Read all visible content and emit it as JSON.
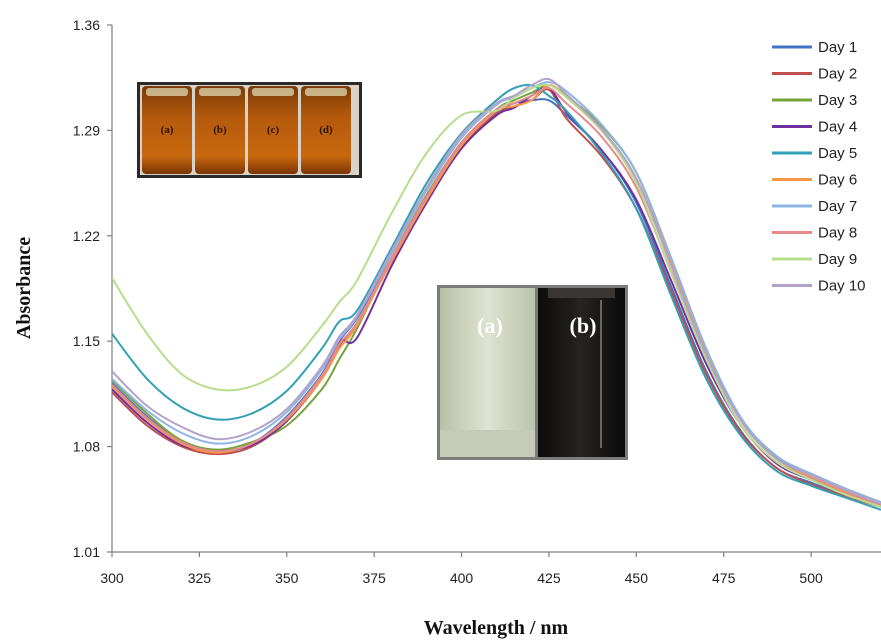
{
  "chart_data": {
    "type": "line",
    "title": "",
    "xlabel": "Wavelength / nm",
    "ylabel": "Absorbance",
    "xlim": [
      300,
      520
    ],
    "ylim": [
      1.01,
      1.36
    ],
    "xticks": [
      "300",
      "325",
      "350",
      "375",
      "400",
      "425",
      "450",
      "475",
      "500"
    ],
    "yticks": [
      "1.01",
      "1.08",
      "1.15",
      "1.22",
      "1.29",
      "1.36"
    ],
    "grid": false,
    "legend_position": "right",
    "x": [
      300,
      310,
      320,
      330,
      340,
      350,
      360,
      365,
      370,
      380,
      390,
      400,
      410,
      415,
      420,
      425,
      430,
      440,
      450,
      460,
      470,
      480,
      490,
      500,
      510,
      520
    ],
    "series": [
      {
        "name": "Day 1",
        "color": "#4472c4",
        "values": [
          1.122,
          1.1,
          1.083,
          1.076,
          1.082,
          1.1,
          1.128,
          1.15,
          1.165,
          1.205,
          1.245,
          1.28,
          1.302,
          1.308,
          1.31,
          1.31,
          1.3,
          1.277,
          1.242,
          1.186,
          1.13,
          1.09,
          1.066,
          1.056,
          1.048,
          1.04
        ]
      },
      {
        "name": "Day 2",
        "color": "#c0504d",
        "values": [
          1.116,
          1.094,
          1.08,
          1.075,
          1.08,
          1.097,
          1.125,
          1.147,
          1.162,
          1.203,
          1.243,
          1.279,
          1.301,
          1.306,
          1.31,
          1.317,
          1.298,
          1.273,
          1.238,
          1.183,
          1.128,
          1.089,
          1.066,
          1.055,
          1.047,
          1.04
        ]
      },
      {
        "name": "Day 3",
        "color": "#77a33a",
        "values": [
          1.124,
          1.102,
          1.084,
          1.078,
          1.083,
          1.094,
          1.118,
          1.138,
          1.158,
          1.205,
          1.247,
          1.282,
          1.304,
          1.31,
          1.315,
          1.32,
          1.313,
          1.293,
          1.262,
          1.205,
          1.145,
          1.098,
          1.073,
          1.062,
          1.052,
          1.043
        ]
      },
      {
        "name": "Day 4",
        "color": "#7030a0",
        "values": [
          1.118,
          1.096,
          1.081,
          1.077,
          1.081,
          1.097,
          1.126,
          1.15,
          1.152,
          1.2,
          1.242,
          1.278,
          1.3,
          1.305,
          1.313,
          1.318,
          1.302,
          1.277,
          1.244,
          1.19,
          1.135,
          1.094,
          1.069,
          1.058,
          1.049,
          1.041
        ]
      },
      {
        "name": "Day 5",
        "color": "#31a0b4",
        "values": [
          1.155,
          1.125,
          1.106,
          1.098,
          1.102,
          1.117,
          1.145,
          1.163,
          1.17,
          1.212,
          1.255,
          1.288,
          1.31,
          1.318,
          1.32,
          1.313,
          1.303,
          1.275,
          1.238,
          1.18,
          1.125,
          1.087,
          1.064,
          1.054,
          1.046,
          1.038
        ]
      },
      {
        "name": "Day 6",
        "color": "#f79646",
        "values": [
          1.12,
          1.098,
          1.082,
          1.076,
          1.082,
          1.098,
          1.125,
          1.145,
          1.16,
          1.203,
          1.244,
          1.28,
          1.303,
          1.306,
          1.31,
          1.32,
          1.312,
          1.29,
          1.258,
          1.202,
          1.142,
          1.097,
          1.072,
          1.06,
          1.05,
          1.042
        ]
      },
      {
        "name": "Day 7",
        "color": "#8eb4e3",
        "values": [
          1.125,
          1.104,
          1.089,
          1.082,
          1.087,
          1.103,
          1.131,
          1.151,
          1.166,
          1.208,
          1.25,
          1.285,
          1.307,
          1.312,
          1.318,
          1.322,
          1.316,
          1.294,
          1.262,
          1.205,
          1.145,
          1.099,
          1.074,
          1.062,
          1.052,
          1.043
        ]
      },
      {
        "name": "Day 8",
        "color": "#e6888c",
        "values": [
          1.121,
          1.099,
          1.083,
          1.077,
          1.082,
          1.099,
          1.127,
          1.148,
          1.162,
          1.205,
          1.246,
          1.282,
          1.304,
          1.308,
          1.313,
          1.318,
          1.308,
          1.286,
          1.252,
          1.196,
          1.138,
          1.094,
          1.07,
          1.059,
          1.049,
          1.041
        ]
      },
      {
        "name": "Day 9",
        "color": "#b7dd8c",
        "values": [
          1.192,
          1.155,
          1.128,
          1.118,
          1.12,
          1.133,
          1.16,
          1.176,
          1.19,
          1.235,
          1.275,
          1.3,
          1.303,
          1.312,
          1.318,
          1.32,
          1.312,
          1.29,
          1.255,
          1.195,
          1.138,
          1.094,
          1.07,
          1.058,
          1.048,
          1.04
        ]
      },
      {
        "name": "Day 10",
        "color": "#b3a2c7",
        "values": [
          1.13,
          1.107,
          1.093,
          1.085,
          1.09,
          1.105,
          1.133,
          1.153,
          1.167,
          1.21,
          1.252,
          1.287,
          1.308,
          1.313,
          1.32,
          1.324,
          1.314,
          1.291,
          1.258,
          1.2,
          1.141,
          1.097,
          1.072,
          1.061,
          1.051,
          1.042
        ]
      }
    ],
    "inset_vials": [
      "(a)",
      "(b)",
      "(c)",
      "(d)"
    ],
    "inset_photo": [
      "(a)",
      "(b)"
    ]
  }
}
